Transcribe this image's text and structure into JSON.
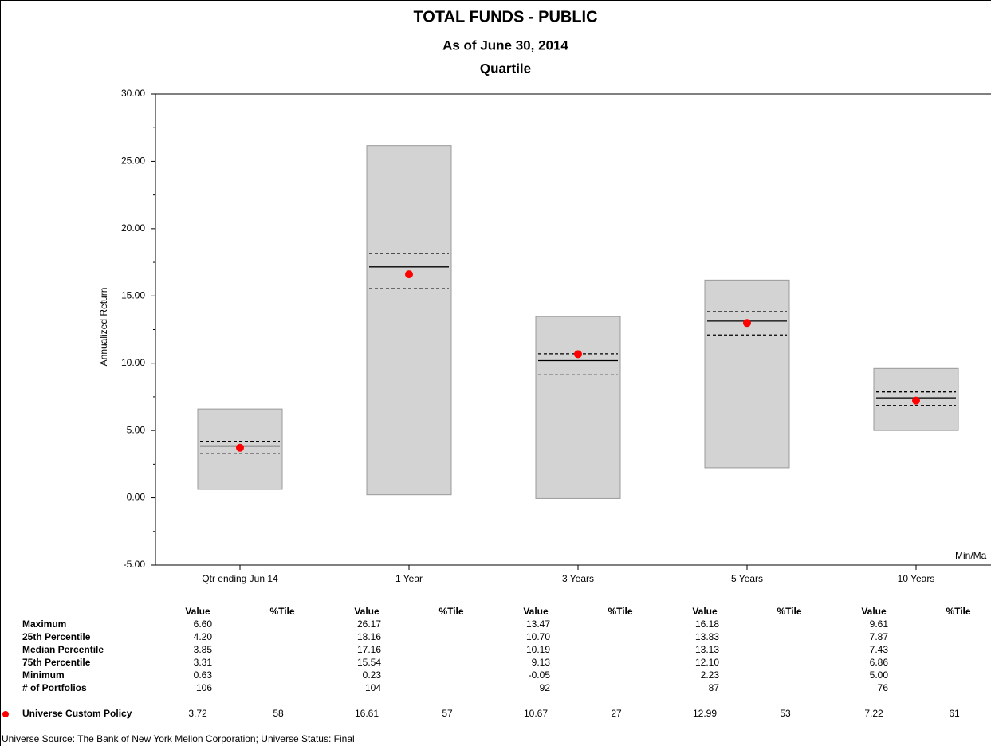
{
  "chart_data": {
    "type": "box",
    "title": "TOTAL FUNDS - PUBLIC",
    "subtitles": [
      "As of June 30, 2014",
      "Quartile"
    ],
    "y_label": "Annualized Return",
    "categories": [
      "Qtr ending Jun 14",
      "1 Year",
      "3 Years",
      "5 Years",
      "10 Years"
    ],
    "ylim": [
      -5,
      30
    ],
    "yticks": [
      {
        "value": -5,
        "label": "-5.00"
      },
      {
        "value": 0,
        "label": "0.00"
      },
      {
        "value": 5,
        "label": "5.00"
      },
      {
        "value": 10,
        "label": "10.00"
      },
      {
        "value": 15,
        "label": "15.00"
      },
      {
        "value": 20,
        "label": "20.00"
      },
      {
        "value": 25,
        "label": "25.00"
      },
      {
        "value": 30,
        "label": "30.00"
      }
    ],
    "yminorticks": [
      -2.5,
      2.5,
      7.5,
      12.5,
      17.5,
      22.5,
      27.5
    ],
    "box_color": "#d3d3d3",
    "legend_label": "Min/Ma",
    "column_headers": [
      "Value",
      "%Tile"
    ],
    "series": [
      {
        "name": "Maximum",
        "values": [
          6.6,
          26.17,
          13.47,
          16.18,
          9.61
        ],
        "value_labels": [
          "6.60",
          "26.17",
          "13.47",
          "16.18",
          "9.61"
        ]
      },
      {
        "name": "25th Percentile",
        "values": [
          4.2,
          18.16,
          10.7,
          13.83,
          7.87
        ],
        "value_labels": [
          "4.20",
          "18.16",
          "10.70",
          "13.83",
          "7.87"
        ]
      },
      {
        "name": "Median Percentile",
        "values": [
          3.85,
          17.16,
          10.19,
          13.13,
          7.43
        ],
        "value_labels": [
          "3.85",
          "17.16",
          "10.19",
          "13.13",
          "7.43"
        ]
      },
      {
        "name": "75th Percentile",
        "values": [
          3.31,
          15.54,
          9.13,
          12.1,
          6.86
        ],
        "value_labels": [
          "3.31",
          "15.54",
          "9.13",
          "12.10",
          "6.86"
        ]
      },
      {
        "name": "Minimum",
        "values": [
          0.63,
          0.23,
          -0.05,
          2.23,
          5
        ],
        "value_labels": [
          "0.63",
          "0.23",
          "-0.05",
          "2.23",
          "5.00"
        ]
      }
    ],
    "portfolios": {
      "name": "# of Portfolios",
      "values": [
        106,
        104,
        92,
        87,
        76
      ]
    },
    "policy": {
      "name": "Universe Custom Policy",
      "color": "#ff0000",
      "values": [
        3.72,
        16.61,
        10.67,
        12.99,
        7.22
      ],
      "value_labels": [
        "3.72",
        "16.61",
        "10.67",
        "12.99",
        "7.22"
      ],
      "percentiles": [
        58,
        57,
        27,
        53,
        61
      ]
    },
    "footer": "Universe Source: The Bank of New York Mellon Corporation;  Universe Status: Final"
  }
}
